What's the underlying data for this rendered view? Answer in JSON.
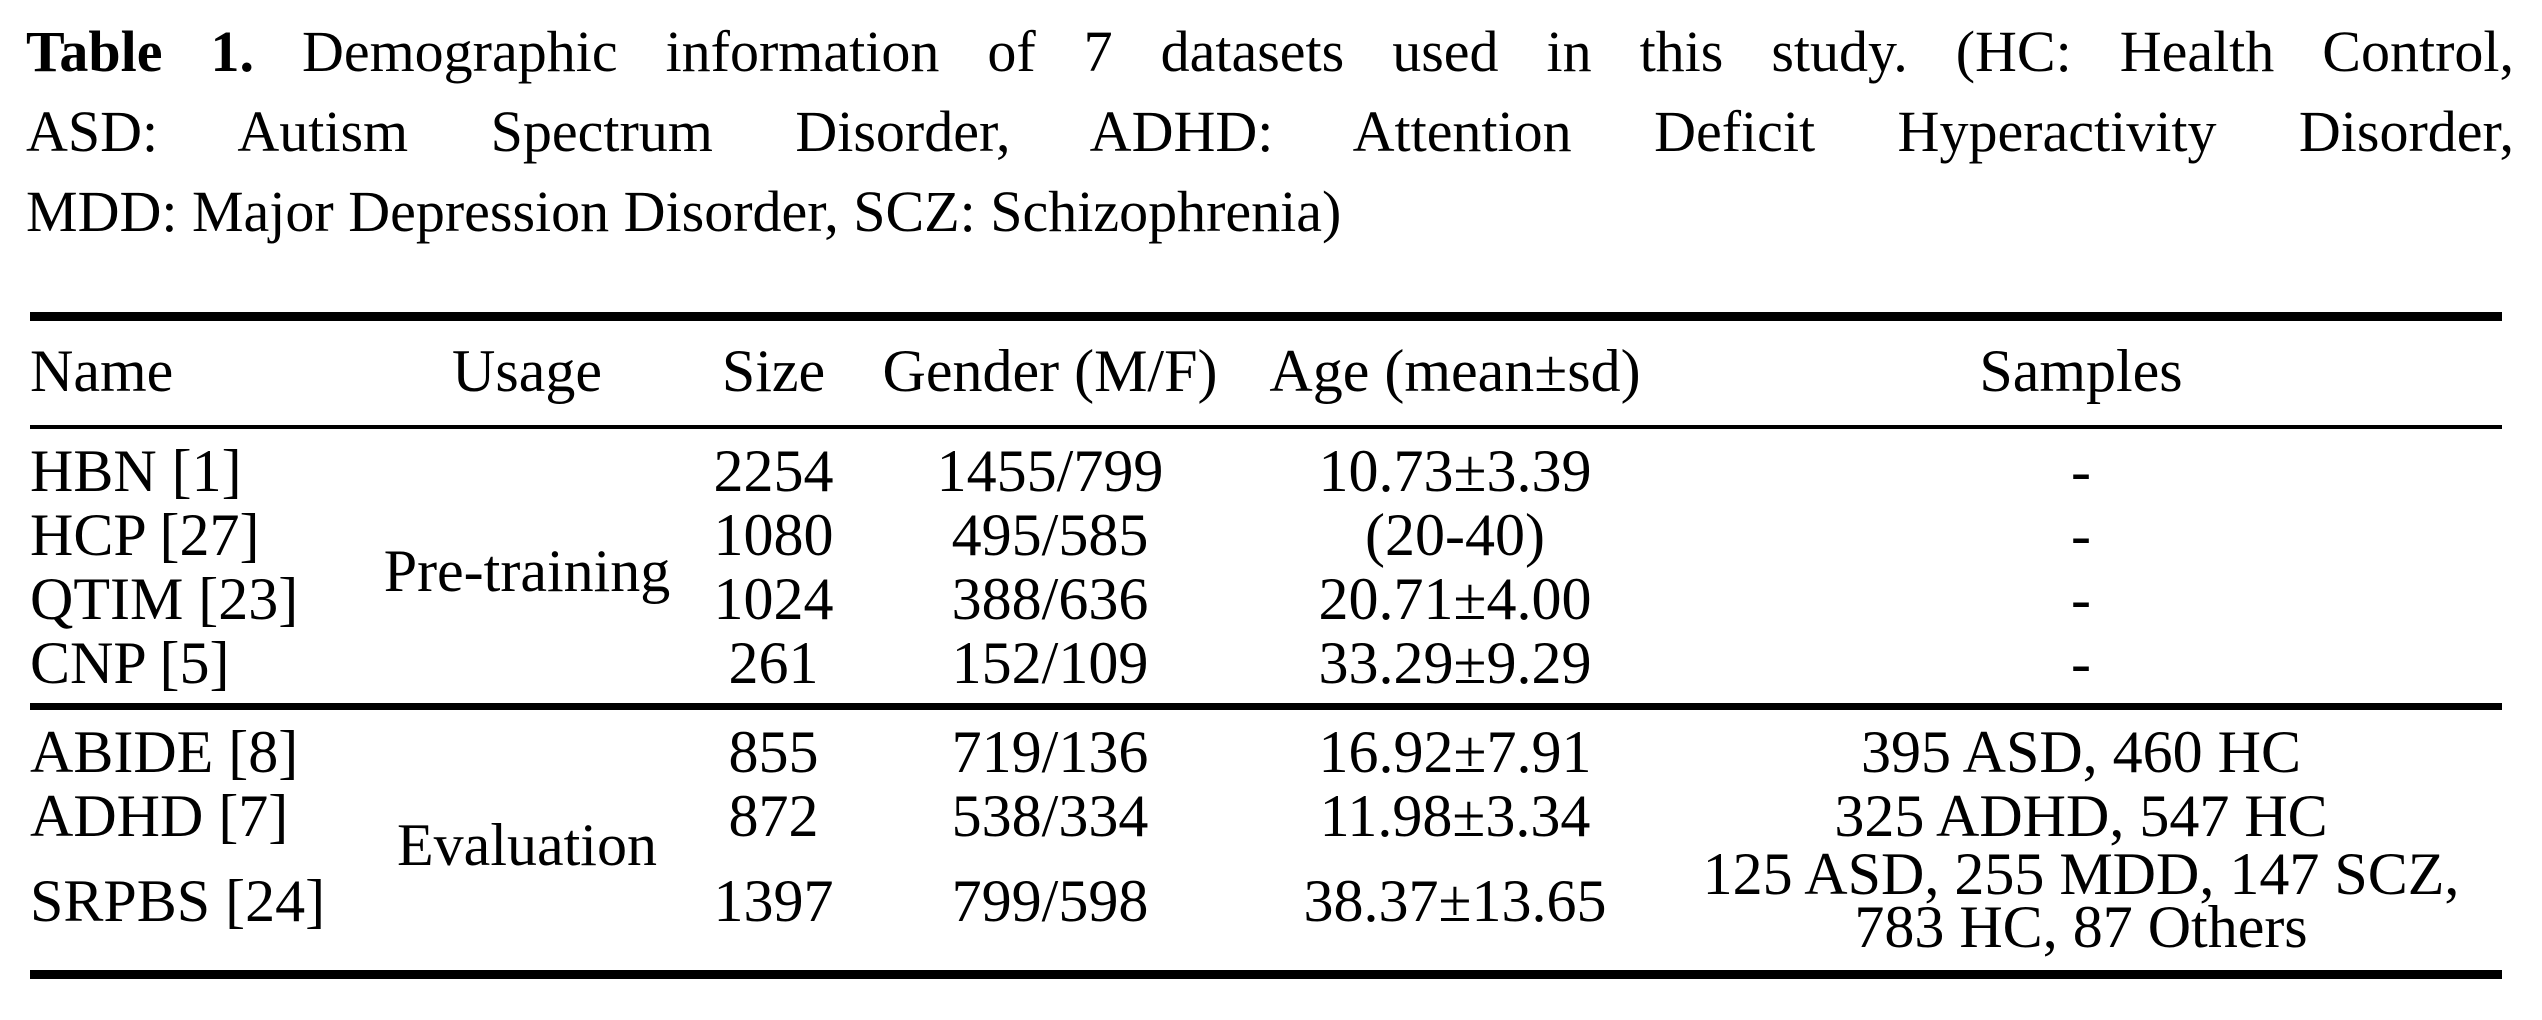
{
  "caption": {
    "label": "Table 1.",
    "lines": [
      "Demographic information of 7 datasets used in this study. (HC: Health Control,",
      "ASD: Autism Spectrum Disorder, ADHD: Attention Deficit Hyperactivity Disorder,",
      "MDD: Major Depression Disorder, SCZ: Schizophrenia)"
    ]
  },
  "table": {
    "columns": [
      "Name",
      "Usage",
      "Size",
      "Gender (M/F)",
      "Age (mean±sd)",
      "Samples"
    ],
    "groups": [
      {
        "usage": "Pre-training",
        "rows": [
          {
            "name": "HBN [1]",
            "size": "2254",
            "gender": "1455/799",
            "age": "10.73±3.39",
            "samples": "-"
          },
          {
            "name": "HCP [27]",
            "size": "1080",
            "gender": "495/585",
            "age": "(20-40)",
            "samples": "-"
          },
          {
            "name": "QTIM [23]",
            "size": "1024",
            "gender": "388/636",
            "age": "20.71±4.00",
            "samples": "-"
          },
          {
            "name": "CNP [5]",
            "size": "261",
            "gender": "152/109",
            "age": "33.29±9.29",
            "samples": "-"
          }
        ]
      },
      {
        "usage": "Evaluation",
        "rows": [
          {
            "name": "ABIDE [8]",
            "size": "855",
            "gender": "719/136",
            "age": "16.92±7.91",
            "samples": "395 ASD, 460 HC"
          },
          {
            "name": "ADHD [7]",
            "size": "872",
            "gender": "538/334",
            "age": "11.98±3.34",
            "samples": "325 ADHD, 547 HC"
          },
          {
            "name": "SRPBS [24]",
            "size": "1397",
            "gender": "799/598",
            "age": "38.37±13.65",
            "samples_lines": [
              "125 ASD, 255 MDD, 147 SCZ,",
              "783 HC, 87 Others"
            ]
          }
        ]
      }
    ]
  }
}
